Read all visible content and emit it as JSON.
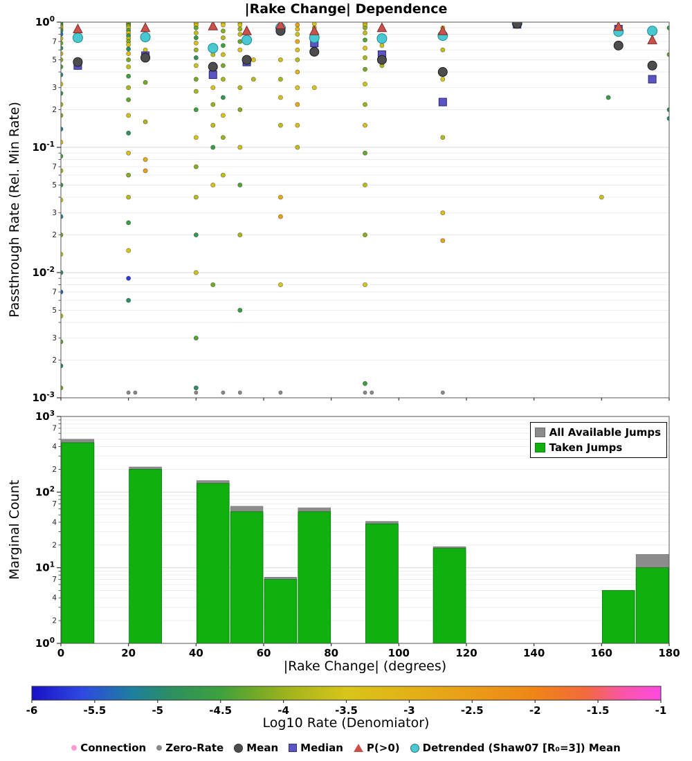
{
  "title": "|Rake Change| Dependence",
  "chart_data": [
    {
      "type": "scatter",
      "title": "|Rake Change| Dependence",
      "ylabel": "Passthrough Rate (Rel. Min Rate)",
      "xlim": [
        0,
        180
      ],
      "ylim": [
        0.001,
        1
      ],
      "ylog": true,
      "grid": true,
      "xticks": [
        0,
        20,
        40,
        60,
        80,
        100,
        120,
        140,
        160,
        180
      ],
      "y_decades": [
        [
          0,
          "10^0"
        ],
        [
          -1,
          "10^-1"
        ],
        [
          -2,
          "10^-2"
        ],
        [
          -3,
          "10^-3"
        ]
      ],
      "y_minor_labels": [
        7,
        5,
        3,
        2
      ],
      "points_note": "each point = [rake_change_deg, passthrough_rate, log10_rate_color (null = zero-rate gray)]",
      "points": [
        [
          0,
          0.99,
          -3.9
        ],
        [
          0,
          0.97,
          -4.3
        ],
        [
          0,
          0.95,
          -4.6
        ],
        [
          0,
          0.92,
          -3.3
        ],
        [
          0,
          0.9,
          -3.5
        ],
        [
          0,
          0.87,
          -4.0
        ],
        [
          0,
          0.85,
          -4.9
        ],
        [
          0,
          0.8,
          -5.3
        ],
        [
          0,
          0.74,
          -3.6
        ],
        [
          0,
          0.68,
          -4.2
        ],
        [
          0,
          0.62,
          -4.7
        ],
        [
          0,
          0.56,
          -3.7
        ],
        [
          0,
          0.5,
          -4.0
        ],
        [
          0,
          0.44,
          -4.4
        ],
        [
          0,
          0.38,
          -5.0
        ],
        [
          0,
          0.32,
          -3.4
        ],
        [
          0,
          0.27,
          -4.7
        ],
        [
          0,
          0.22,
          -3.9
        ],
        [
          0,
          0.18,
          -4.1
        ],
        [
          0,
          0.14,
          -5.2
        ],
        [
          0,
          0.11,
          -3.5
        ],
        [
          0,
          0.085,
          -4.4
        ],
        [
          0,
          0.065,
          -3.9
        ],
        [
          0,
          0.05,
          -4.6
        ],
        [
          0,
          0.038,
          -3.4
        ],
        [
          0,
          0.028,
          -5.1
        ],
        [
          0,
          0.02,
          -4.2
        ],
        [
          0,
          0.014,
          -3.7
        ],
        [
          0,
          0.01,
          -4.8
        ],
        [
          0,
          0.007,
          -5.4
        ],
        [
          0,
          0.0045,
          -3.8
        ],
        [
          0,
          0.0028,
          -4.3
        ],
        [
          0,
          0.0018,
          -5.0
        ],
        [
          0,
          0.0012,
          -4.2
        ],
        [
          20,
          0.99,
          -3.8
        ],
        [
          20,
          0.97,
          -3.4
        ],
        [
          20,
          0.95,
          -4.5
        ],
        [
          20,
          0.93,
          -4.0
        ],
        [
          20,
          0.9,
          -3.6
        ],
        [
          20,
          0.86,
          -4.4
        ],
        [
          20,
          0.82,
          -3.2
        ],
        [
          20,
          0.78,
          -4.7
        ],
        [
          20,
          0.74,
          -3.8
        ],
        [
          20,
          0.7,
          -4.1
        ],
        [
          20,
          0.66,
          -3.5
        ],
        [
          20,
          0.61,
          -4.9
        ],
        [
          20,
          0.56,
          -3.3
        ],
        [
          20,
          0.5,
          -4.2
        ],
        [
          20,
          0.44,
          -3.7
        ],
        [
          20,
          0.37,
          -4.5
        ],
        [
          20,
          0.3,
          -3.9
        ],
        [
          20,
          0.24,
          -4.3
        ],
        [
          20,
          0.18,
          -3.6
        ],
        [
          20,
          0.13,
          -4.8
        ],
        [
          20,
          0.09,
          -3.4
        ],
        [
          20,
          0.06,
          -4.1
        ],
        [
          20,
          0.04,
          -3.8
        ],
        [
          20,
          0.025,
          -4.6
        ],
        [
          20,
          0.015,
          -3.5
        ],
        [
          20,
          0.009,
          -5.7
        ],
        [
          20,
          0.006,
          -4.9
        ],
        [
          20,
          0.0011,
          null
        ],
        [
          22,
          0.0011,
          null
        ],
        [
          25,
          0.6,
          -3.6
        ],
        [
          25,
          0.33,
          -4.2
        ],
        [
          25,
          0.16,
          -3.9
        ],
        [
          25,
          0.08,
          -2.8
        ],
        [
          25,
          0.065,
          -2.6
        ],
        [
          40,
          0.99,
          -3.9
        ],
        [
          40,
          0.97,
          -3.5
        ],
        [
          40,
          0.94,
          -3.3
        ],
        [
          40,
          0.9,
          -4.3
        ],
        [
          40,
          0.82,
          -3.7
        ],
        [
          40,
          0.75,
          -4.6
        ],
        [
          40,
          0.68,
          -3.4
        ],
        [
          40,
          0.6,
          -4.0
        ],
        [
          40,
          0.52,
          -4.8
        ],
        [
          40,
          0.45,
          -3.6
        ],
        [
          40,
          0.35,
          -4.2
        ],
        [
          40,
          0.28,
          -3.9
        ],
        [
          40,
          0.2,
          -4.5
        ],
        [
          40,
          0.12,
          -3.5
        ],
        [
          40,
          0.07,
          -4.1
        ],
        [
          40,
          0.04,
          -3.8
        ],
        [
          40,
          0.02,
          -4.7
        ],
        [
          40,
          0.01,
          -3.6
        ],
        [
          40,
          0.003,
          -4.4
        ],
        [
          40,
          0.0012,
          -4.9
        ],
        [
          40,
          0.0011,
          null
        ],
        [
          45,
          0.9,
          -3.3
        ],
        [
          45,
          0.55,
          -3.8
        ],
        [
          45,
          0.3,
          -3.5
        ],
        [
          45,
          0.22,
          -4.0
        ],
        [
          45,
          0.15,
          -3.7
        ],
        [
          45,
          0.1,
          -4.6
        ],
        [
          45,
          0.05,
          -3.4
        ],
        [
          45,
          0.008,
          -4.2
        ],
        [
          48,
          0.99,
          -3.6
        ],
        [
          48,
          0.95,
          -3.5
        ],
        [
          48,
          0.85,
          -4.1
        ],
        [
          48,
          0.75,
          -3.8
        ],
        [
          48,
          0.65,
          -4.5
        ],
        [
          48,
          0.55,
          -3.6
        ],
        [
          48,
          0.45,
          -4.2
        ],
        [
          48,
          0.35,
          -3.9
        ],
        [
          48,
          0.25,
          -4.7
        ],
        [
          48,
          0.18,
          -3.5
        ],
        [
          48,
          0.12,
          -4.0
        ],
        [
          48,
          0.06,
          -3.7
        ],
        [
          48,
          0.0011,
          null
        ],
        [
          53,
          0.99,
          -3.7
        ],
        [
          53,
          0.95,
          -3.4
        ],
        [
          53,
          0.88,
          -4.0
        ],
        [
          53,
          0.8,
          -3.7
        ],
        [
          53,
          0.7,
          -4.3
        ],
        [
          53,
          0.6,
          -3.5
        ],
        [
          53,
          0.3,
          -3.8
        ],
        [
          53,
          0.2,
          -4.1
        ],
        [
          53,
          0.1,
          -3.6
        ],
        [
          53,
          0.05,
          -4.4
        ],
        [
          53,
          0.02,
          -3.9
        ],
        [
          53,
          0.005,
          -4.6
        ],
        [
          53,
          0.0011,
          null
        ],
        [
          57,
          0.5,
          -3.5
        ],
        [
          57,
          0.35,
          -3.8
        ],
        [
          65,
          0.97,
          -2.8
        ],
        [
          65,
          0.93,
          -3.3
        ],
        [
          65,
          0.5,
          -3.6
        ],
        [
          65,
          0.35,
          -3.9
        ],
        [
          65,
          0.25,
          -3.4
        ],
        [
          65,
          0.15,
          -3.7
        ],
        [
          65,
          0.04,
          -2.9
        ],
        [
          65,
          0.028,
          -2.6
        ],
        [
          65,
          0.008,
          -3.5
        ],
        [
          65,
          0.0011,
          null
        ],
        [
          70,
          0.95,
          -2.7
        ],
        [
          70,
          0.88,
          -3.2
        ],
        [
          70,
          0.8,
          -3.6
        ],
        [
          70,
          0.7,
          -2.9
        ],
        [
          70,
          0.6,
          -3.4
        ],
        [
          70,
          0.5,
          -3.8
        ],
        [
          70,
          0.4,
          -3.1
        ],
        [
          70,
          0.3,
          -3.5
        ],
        [
          70,
          0.22,
          -2.8
        ],
        [
          70,
          0.15,
          -3.3
        ],
        [
          70,
          0.1,
          -3.7
        ],
        [
          75,
          0.97,
          -3.4
        ],
        [
          75,
          0.9,
          -3.8
        ],
        [
          75,
          0.82,
          -3.2
        ],
        [
          75,
          0.72,
          -3.6
        ],
        [
          75,
          0.62,
          -4.0
        ],
        [
          75,
          0.3,
          -3.5
        ],
        [
          90,
          0.99,
          -3.8
        ],
        [
          90,
          0.97,
          -3.5
        ],
        [
          90,
          0.94,
          -3.3
        ],
        [
          90,
          0.9,
          -4.1
        ],
        [
          90,
          0.82,
          -3.7
        ],
        [
          90,
          0.72,
          -4.4
        ],
        [
          90,
          0.62,
          -3.5
        ],
        [
          90,
          0.52,
          -3.9
        ],
        [
          90,
          0.42,
          -4.2
        ],
        [
          90,
          0.32,
          -3.6
        ],
        [
          90,
          0.22,
          -4.0
        ],
        [
          90,
          0.15,
          -3.4
        ],
        [
          90,
          0.09,
          -4.3
        ],
        [
          90,
          0.05,
          -3.7
        ],
        [
          90,
          0.02,
          -4.1
        ],
        [
          90,
          0.008,
          -3.5
        ],
        [
          90,
          0.0013,
          -4.5
        ],
        [
          90,
          0.0011,
          null
        ],
        [
          92,
          0.0011,
          null
        ],
        [
          95,
          0.65,
          -3.6
        ],
        [
          95,
          0.45,
          -3.9
        ],
        [
          113,
          0.9,
          -3.4
        ],
        [
          113,
          0.6,
          -3.7
        ],
        [
          113,
          0.35,
          -3.5
        ],
        [
          113,
          0.12,
          -3.8
        ],
        [
          113,
          0.03,
          -3.3
        ],
        [
          113,
          0.018,
          -2.7
        ],
        [
          113,
          0.0011,
          null
        ],
        [
          160,
          0.04,
          -3.6
        ],
        [
          162,
          0.25,
          -4.6
        ],
        [
          180,
          0.9,
          -4.6
        ],
        [
          180,
          0.55,
          -4.3
        ],
        [
          180,
          0.2,
          -4.8
        ],
        [
          180,
          0.17,
          -5.0
        ]
      ],
      "summary": {
        "mean": [
          [
            5,
            0.48
          ],
          [
            25,
            0.52
          ],
          [
            45,
            0.44
          ],
          [
            55,
            0.5
          ],
          [
            65,
            0.85
          ],
          [
            75,
            0.58
          ],
          [
            95,
            0.5
          ],
          [
            113,
            0.4
          ],
          [
            135,
            0.97
          ],
          [
            165,
            0.65
          ],
          [
            175,
            0.45
          ]
        ],
        "median": [
          [
            5,
            0.45
          ],
          [
            25,
            0.54
          ],
          [
            45,
            0.38
          ],
          [
            55,
            0.48
          ],
          [
            65,
            0.88
          ],
          [
            75,
            0.68
          ],
          [
            95,
            0.55
          ],
          [
            113,
            0.23
          ],
          [
            135,
            0.96
          ],
          [
            165,
            0.88
          ],
          [
            175,
            0.35
          ]
        ],
        "p_gt0": [
          [
            5,
            0.88
          ],
          [
            25,
            0.9
          ],
          [
            45,
            0.93
          ],
          [
            55,
            0.85
          ],
          [
            65,
            0.95
          ],
          [
            75,
            0.85
          ],
          [
            95,
            0.9
          ],
          [
            113,
            0.85
          ],
          [
            165,
            0.92
          ],
          [
            175,
            0.72
          ]
        ],
        "detrended": [
          [
            5,
            0.75
          ],
          [
            25,
            0.76
          ],
          [
            45,
            0.62
          ],
          [
            55,
            0.72
          ],
          [
            65,
            0.9
          ],
          [
            75,
            0.75
          ],
          [
            95,
            0.74
          ],
          [
            113,
            0.78
          ],
          [
            135,
            0.98
          ],
          [
            165,
            0.84
          ],
          [
            175,
            0.85
          ]
        ]
      },
      "marker_colors": {
        "mean": "#4d4d4d",
        "median": "#5a55c2",
        "p_gt0": "#c9524c",
        "detrended": "#49c8d2",
        "zero_rate": "#8a8a8a",
        "connection": "#ff9ad5"
      }
    },
    {
      "type": "bar",
      "ylabel": "Marginal Count",
      "xlabel": "|Rake Change| (degrees)",
      "xlim": [
        0,
        180
      ],
      "ylim": [
        1,
        1000
      ],
      "ylog": true,
      "grid": true,
      "xticks": [
        0,
        20,
        40,
        60,
        80,
        100,
        120,
        140,
        160,
        180
      ],
      "y_decades": [
        [
          3,
          "10^3"
        ],
        [
          2,
          "10^2"
        ],
        [
          1,
          "10^1"
        ],
        [
          0,
          "10^0"
        ]
      ],
      "y_minor_labels": [
        7,
        4,
        2
      ],
      "bars_note": "each bar = {x0,x1 (deg), taken: green count, available: gray count}",
      "bars": [
        {
          "x0": 0,
          "x1": 10,
          "taken": 450,
          "available": 500
        },
        {
          "x0": 20,
          "x1": 30,
          "taken": 200,
          "available": 215
        },
        {
          "x0": 40,
          "x1": 50,
          "taken": 130,
          "available": 142
        },
        {
          "x0": 50,
          "x1": 60,
          "taken": 55,
          "available": 65
        },
        {
          "x0": 60,
          "x1": 70,
          "taken": 7,
          "available": 7.5
        },
        {
          "x0": 70,
          "x1": 80,
          "taken": 55,
          "available": 62
        },
        {
          "x0": 90,
          "x1": 100,
          "taken": 38,
          "available": 41
        },
        {
          "x0": 110,
          "x1": 120,
          "taken": 18,
          "available": 19
        },
        {
          "x0": 160,
          "x1": 170,
          "taken": 5,
          "available": 5
        },
        {
          "x0": 170,
          "x1": 180,
          "taken": 10,
          "available": 15
        }
      ],
      "legend": [
        {
          "label": "All Available Jumps",
          "color": "#8c8c8c"
        },
        {
          "label": "Taken Jumps",
          "color": "#0fb00f"
        }
      ]
    },
    {
      "type": "colorbar",
      "label": "Log10 Rate (Denomiator)",
      "range": [
        -6,
        -1
      ],
      "ticks": [
        -6,
        -5.5,
        -5,
        -4.5,
        -4,
        -3.5,
        -3,
        -2.5,
        -2,
        -1.5,
        -1
      ],
      "stops": [
        [
          -6.0,
          "#1a10c8"
        ],
        [
          -5.6,
          "#2e49e0"
        ],
        [
          -5.2,
          "#1d7f9e"
        ],
        [
          -4.9,
          "#2c8f62"
        ],
        [
          -4.5,
          "#3da23d"
        ],
        [
          -4.2,
          "#76aa26"
        ],
        [
          -3.9,
          "#aab61c"
        ],
        [
          -3.5,
          "#d8c51a"
        ],
        [
          -3.0,
          "#e3b117"
        ],
        [
          -2.5,
          "#ea9c18"
        ],
        [
          -2.0,
          "#ef8516"
        ],
        [
          -1.6,
          "#f26a3c"
        ],
        [
          -1.3,
          "#fa55a8"
        ],
        [
          -1.0,
          "#ff49e0"
        ]
      ]
    }
  ],
  "legend_bottom": {
    "items": [
      {
        "label": "Connection",
        "marker": "dot",
        "color": "#ff9ad5"
      },
      {
        "label": "Zero-Rate",
        "marker": "dot",
        "color": "#8a8a8a"
      },
      {
        "label": "Mean",
        "marker": "circle",
        "color": "#4d4d4d"
      },
      {
        "label": "Median",
        "marker": "square",
        "color": "#5a55c2"
      },
      {
        "label": "P(>0)",
        "marker": "triangle",
        "color": "#c9524c"
      },
      {
        "label": "Detrended (Shaw07 [R₀=3]) Mean",
        "marker": "circle",
        "color": "#49c8d2"
      }
    ]
  }
}
